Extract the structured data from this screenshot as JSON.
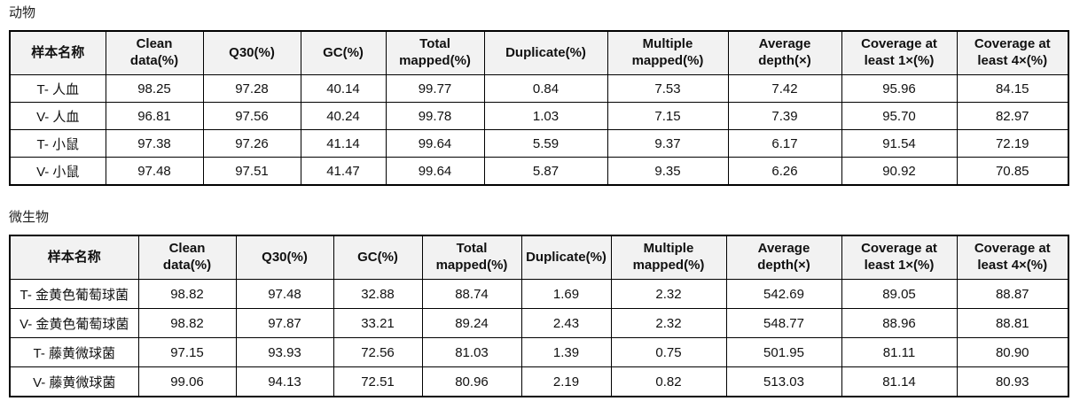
{
  "colors": {
    "page_bg": "#ffffff",
    "header_bg": "#f2f2f2",
    "border": "#000000",
    "text": "#111111"
  },
  "tables": [
    {
      "title": "动物",
      "columns": [
        "样本名称",
        "Clean\ndata(%)",
        "Q30(%)",
        "GC(%)",
        "Total\nmapped(%)",
        "Duplicate(%)",
        "Multiple\nmapped(%)",
        "Average\ndepth(×)",
        "Coverage at\nleast 1×(%)",
        "Coverage at\nleast 4×(%)"
      ],
      "rows": [
        [
          "T- 人血",
          "98.25",
          "97.28",
          "40.14",
          "99.77",
          "0.84",
          "7.53",
          "7.42",
          "95.96",
          "84.15"
        ],
        [
          "V- 人血",
          "96.81",
          "97.56",
          "40.24",
          "99.78",
          "1.03",
          "7.15",
          "7.39",
          "95.70",
          "82.97"
        ],
        [
          "T- 小鼠",
          "97.38",
          "97.26",
          "41.14",
          "99.64",
          "5.59",
          "9.37",
          "6.17",
          "91.54",
          "72.19"
        ],
        [
          "V- 小鼠",
          "97.48",
          "97.51",
          "41.47",
          "99.64",
          "5.87",
          "9.35",
          "6.26",
          "90.92",
          "70.85"
        ]
      ]
    },
    {
      "title": "微生物",
      "columns": [
        "样本名称",
        "Clean\ndata(%)",
        "Q30(%)",
        "GC(%)",
        "Total\nmapped(%)",
        "Duplicate(%)",
        "Multiple\nmapped(%)",
        "Average\ndepth(×)",
        "Coverage at\nleast 1×(%)",
        "Coverage at\nleast 4×(%)"
      ],
      "rows": [
        [
          "T- 金黄色葡萄球菌",
          "98.82",
          "97.48",
          "32.88",
          "88.74",
          "1.69",
          "2.32",
          "542.69",
          "89.05",
          "88.87"
        ],
        [
          "V- 金黄色葡萄球菌",
          "98.82",
          "97.87",
          "33.21",
          "89.24",
          "2.43",
          "2.32",
          "548.77",
          "88.96",
          "88.81"
        ],
        [
          "T- 藤黄微球菌",
          "97.15",
          "93.93",
          "72.56",
          "81.03",
          "1.39",
          "0.75",
          "501.95",
          "81.11",
          "80.90"
        ],
        [
          "V- 藤黄微球菌",
          "99.06",
          "94.13",
          "72.51",
          "80.96",
          "2.19",
          "0.82",
          "513.03",
          "81.14",
          "80.93"
        ]
      ]
    }
  ]
}
